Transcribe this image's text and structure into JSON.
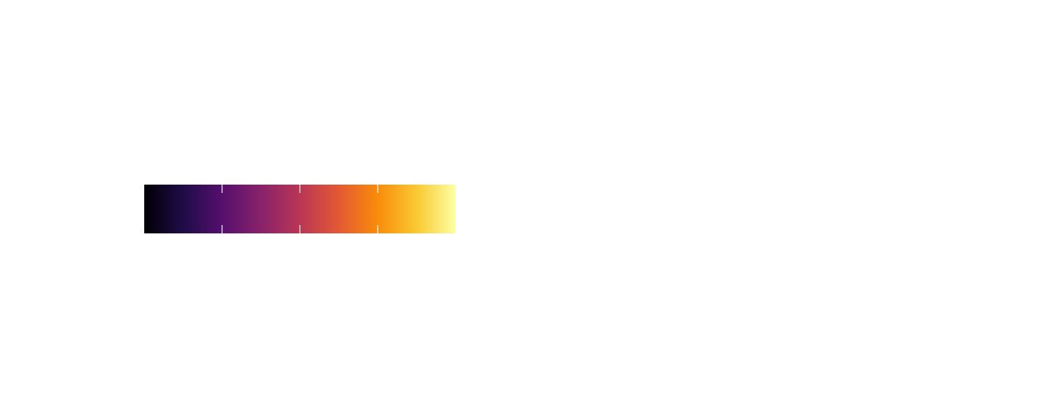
{
  "chart_data": {
    "type": "heatmap",
    "colormap_stops": [
      "#000004",
      "#1f0c48",
      "#550f6d",
      "#88226a",
      "#ba3655",
      "#e35933",
      "#f98c0a",
      "#f9c932",
      "#fcffa4"
    ],
    "value_range": [
      0,
      1
    ],
    "ticks": [
      0.25,
      0.5,
      0.75
    ],
    "tick_color": "#ffffff",
    "orientation": "horizontal"
  }
}
